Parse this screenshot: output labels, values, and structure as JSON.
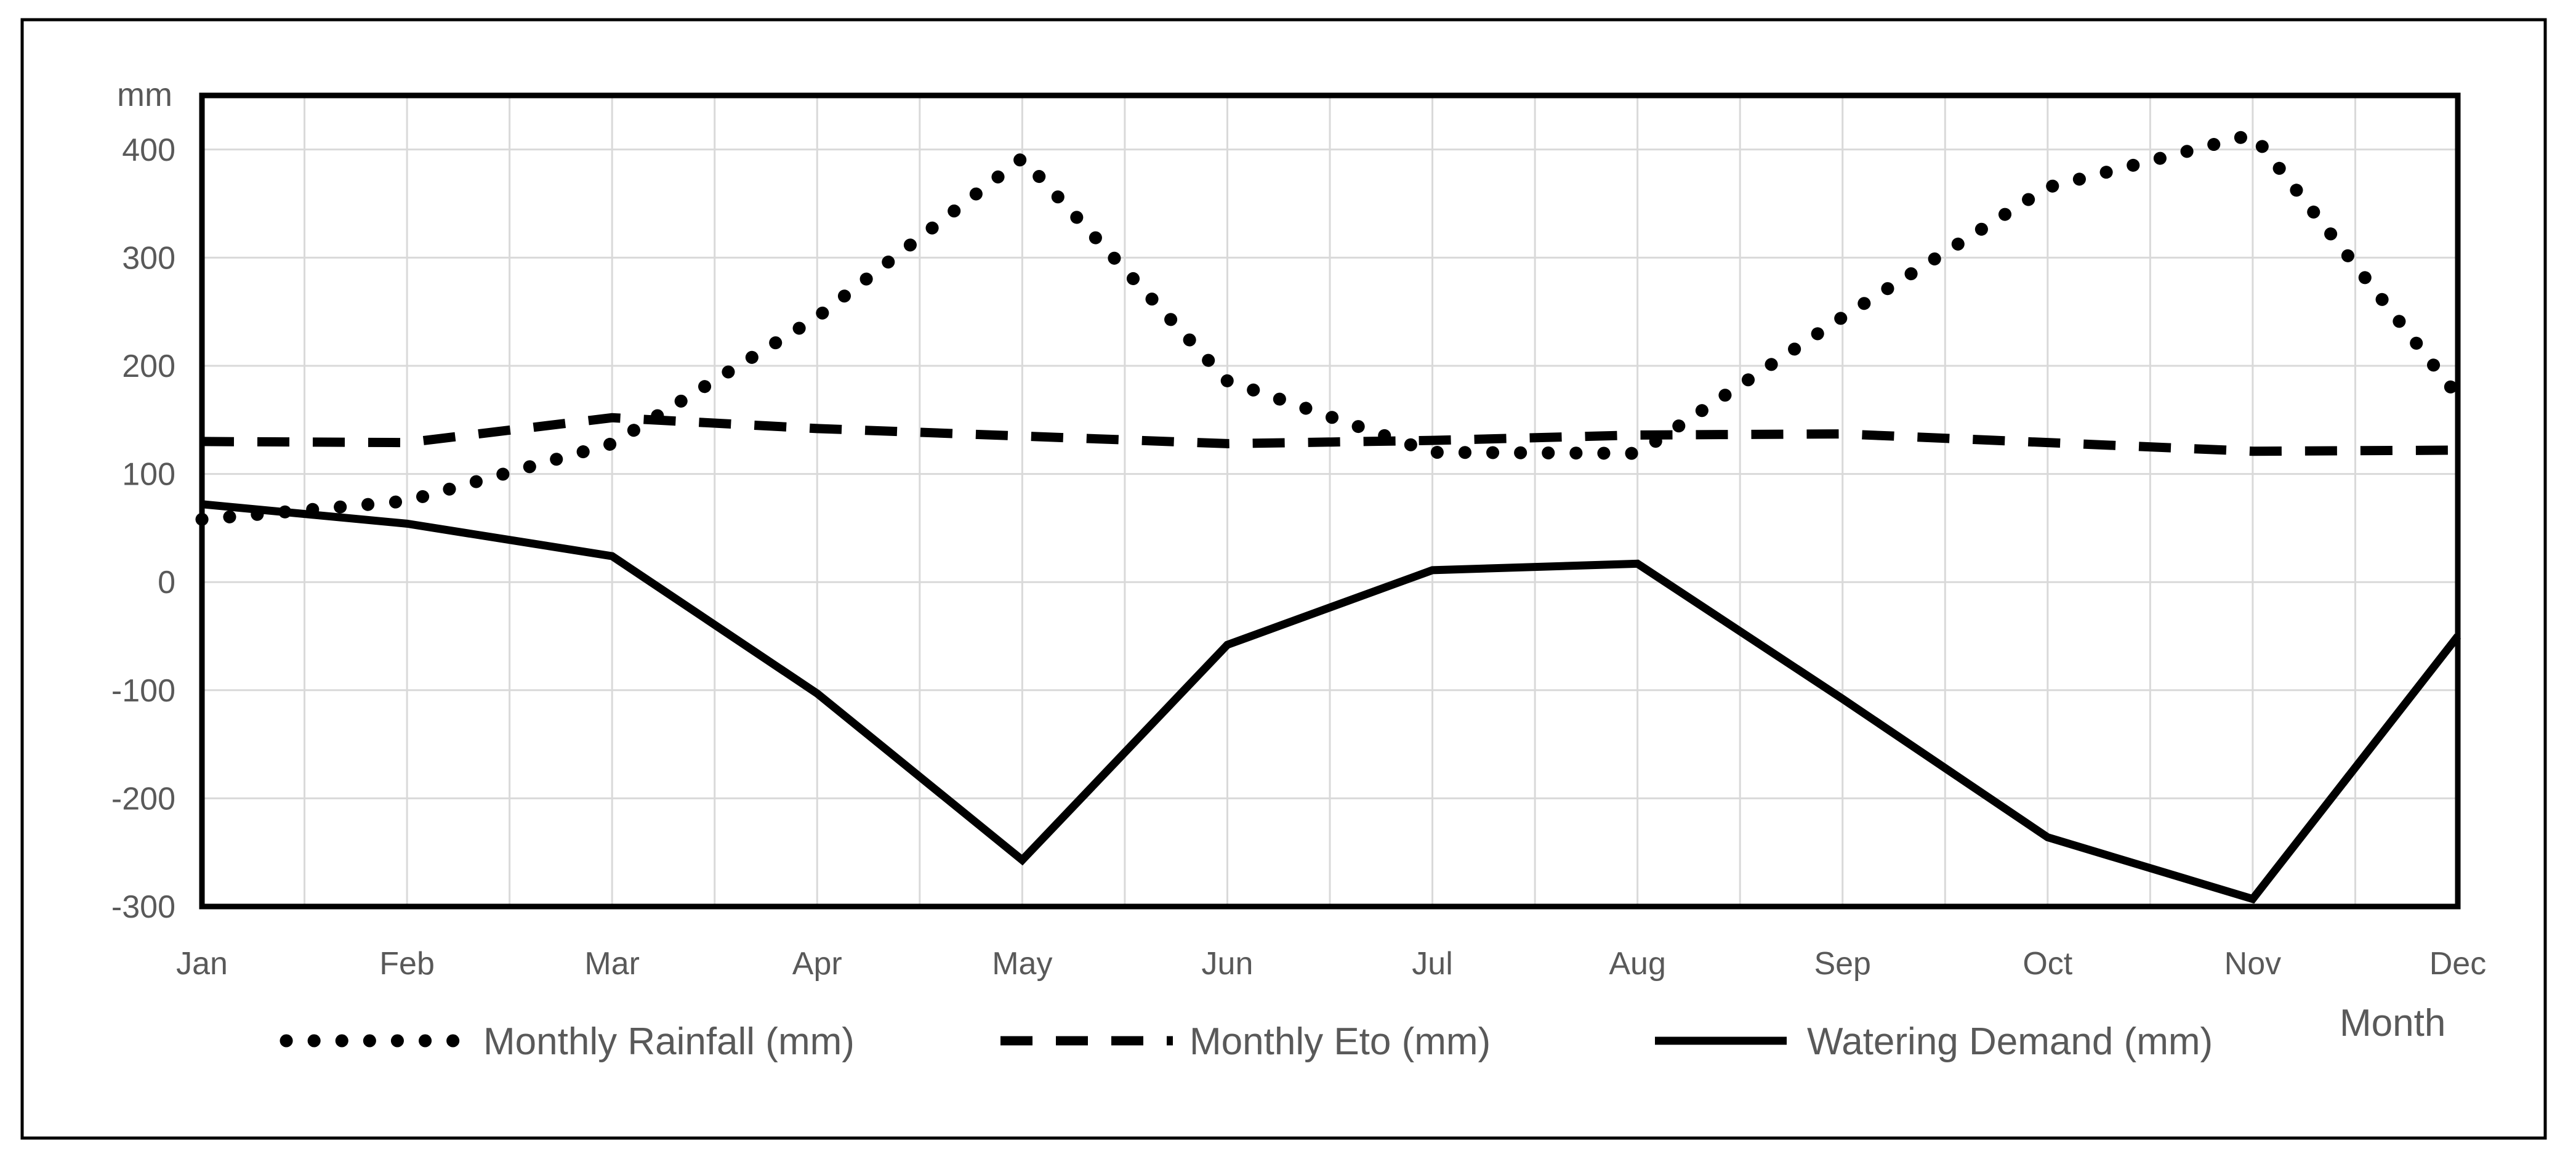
{
  "chart_data": {
    "type": "line",
    "title": "",
    "xlabel": "Month",
    "ylabel": "mm",
    "categories": [
      "Jan",
      "Feb",
      "Mar",
      "Apr",
      "May",
      "Jun",
      "Jul",
      "Aug",
      "Sep",
      "Oct",
      "Nov",
      "Dec"
    ],
    "series": [
      {
        "name": "Monthly Rainfall (mm)",
        "style": "dotted",
        "values": [
          58,
          75,
          128,
          245,
          392,
          186,
          120,
          119,
          245,
          365,
          414,
          172
        ]
      },
      {
        "name": "Monthly Eto (mm)",
        "style": "dashed",
        "values": [
          130,
          129,
          152,
          142,
          135,
          128,
          131,
          136,
          137,
          129,
          121,
          122
        ]
      },
      {
        "name": "Watering Demand (mm)",
        "style": "solid",
        "values": [
          72,
          54,
          24,
          -103,
          -257,
          -58,
          11,
          17,
          -108,
          -236,
          -293,
          -50
        ]
      }
    ],
    "ylim": [
      -300,
      450
    ],
    "yticks": [
      400,
      300,
      200,
      100,
      0,
      -100,
      -200,
      -300
    ],
    "x_minor_divisions": 2,
    "grid": true,
    "legend_position": "bottom",
    "colors": {
      "line": "#000000",
      "grid": "#d9d9d9",
      "label": "#595959",
      "background": "#ffffff",
      "border": "#000000"
    }
  }
}
